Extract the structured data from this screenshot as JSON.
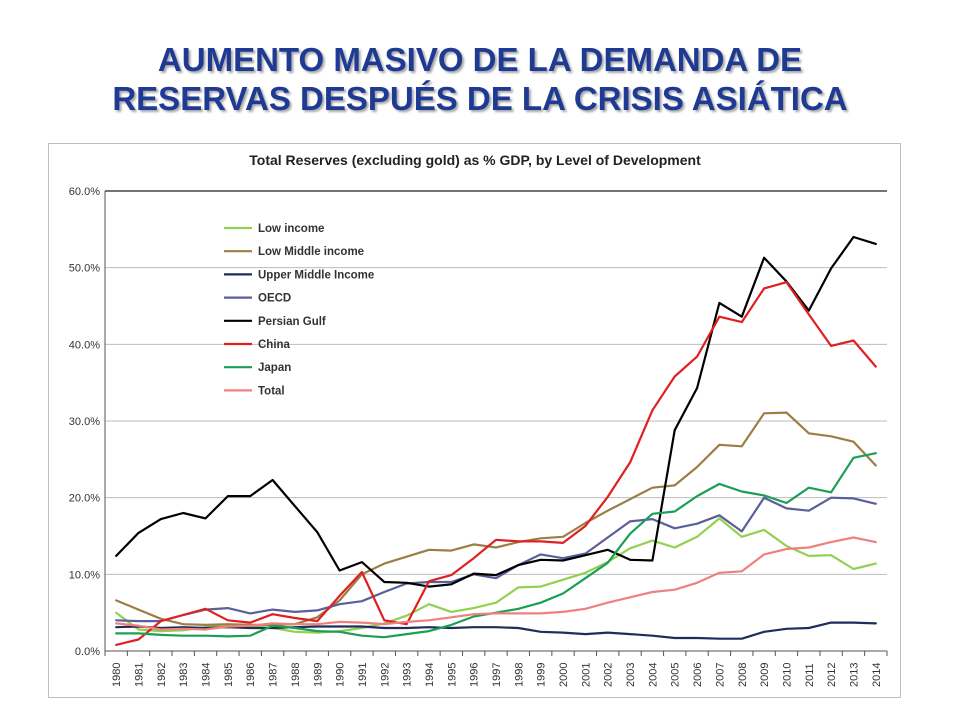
{
  "slide": {
    "title_line1": "AUMENTO MASIVO DE LA DEMANDA DE",
    "title_line2": "RESERVAS DESPUÉS DE LA CRISIS ASIÁTICA",
    "title_color": "#1f3a93"
  },
  "chart_data": {
    "type": "line",
    "title": "Total Reserves (excluding gold) as % GDP, by Level of Development",
    "xlabel": "",
    "ylabel": "",
    "ylim": [
      0,
      60
    ],
    "yticks": [
      "0.0%",
      "10.0%",
      "20.0%",
      "30.0%",
      "40.0%",
      "50.0%",
      "60.0%"
    ],
    "grid": true,
    "legend": "top-left",
    "categories": [
      "1980",
      "1981",
      "1982",
      "1983",
      "1984",
      "1985",
      "1986",
      "1987",
      "1988",
      "1989",
      "1990",
      "1991",
      "1992",
      "1993",
      "1994",
      "1995",
      "1996",
      "1997",
      "1998",
      "1999",
      "2000",
      "2001",
      "2002",
      "2003",
      "2004",
      "2005",
      "2006",
      "2007",
      "2008",
      "2009",
      "2010",
      "2011",
      "2012",
      "2013",
      "2014"
    ],
    "series": [
      {
        "name": "Low income",
        "color": "#92d050",
        "values": [
          5.0,
          2.8,
          2.6,
          2.7,
          3.1,
          3.4,
          3.2,
          3.0,
          2.5,
          2.4,
          2.6,
          3.0,
          3.6,
          4.6,
          6.1,
          5.1,
          5.6,
          6.3,
          8.3,
          8.4,
          9.3,
          10.2,
          11.6,
          13.4,
          14.4,
          13.5,
          14.9,
          17.3,
          14.9,
          15.8,
          13.7,
          12.4,
          12.5,
          10.7,
          11.4
        ]
      },
      {
        "name": "Low Middle income",
        "color": "#9c7e45",
        "values": [
          6.6,
          5.4,
          4.2,
          3.5,
          3.4,
          3.5,
          3.4,
          3.4,
          3.5,
          4.4,
          6.6,
          10.0,
          11.4,
          12.3,
          13.2,
          13.1,
          13.9,
          13.5,
          14.2,
          14.7,
          14.9,
          16.7,
          18.3,
          19.8,
          21.3,
          21.6,
          24.0,
          26.9,
          26.7,
          31.0,
          31.1,
          28.4,
          28.0,
          27.3,
          24.2
        ]
      },
      {
        "name": "Upper Middle Income",
        "color": "#1f2d5a",
        "values": [
          3.1,
          3.2,
          3.0,
          3.1,
          3.0,
          3.1,
          3.0,
          3.0,
          3.1,
          3.2,
          3.2,
          3.2,
          3.0,
          3.0,
          3.1,
          3.0,
          3.1,
          3.1,
          3.0,
          2.5,
          2.4,
          2.2,
          2.4,
          2.2,
          2.0,
          1.7,
          1.7,
          1.6,
          1.6,
          2.5,
          2.9,
          3.0,
          3.7,
          3.7,
          3.6
        ]
      },
      {
        "name": "OECD",
        "color": "#5a5f9a",
        "values": [
          4.0,
          3.9,
          3.9,
          4.7,
          5.4,
          5.6,
          4.9,
          5.4,
          5.1,
          5.3,
          6.1,
          6.5,
          7.7,
          8.8,
          9.0,
          9.0,
          10.0,
          9.5,
          11.2,
          12.6,
          12.1,
          12.7,
          14.8,
          16.9,
          17.2,
          16.0,
          16.6,
          17.7,
          15.6,
          20.0,
          18.6,
          18.3,
          20.0,
          19.9,
          19.2
        ]
      },
      {
        "name": "Persian Gulf",
        "color": "#000000",
        "values": [
          12.4,
          15.4,
          17.2,
          18.0,
          17.3,
          20.2,
          20.2,
          22.3,
          18.9,
          15.5,
          10.5,
          11.6,
          9.0,
          8.9,
          8.4,
          8.7,
          10.1,
          9.9,
          11.2,
          11.9,
          11.8,
          12.5,
          13.2,
          11.9,
          11.8,
          28.8,
          34.3,
          45.4,
          43.6,
          51.3,
          48.2,
          44.4,
          49.9,
          54.0,
          53.1
        ]
      },
      {
        "name": "China",
        "color": "#e02020",
        "values": [
          0.8,
          1.5,
          3.9,
          4.7,
          5.5,
          4.0,
          3.7,
          4.8,
          4.3,
          3.9,
          7.2,
          10.3,
          4.0,
          3.5,
          9.1,
          9.9,
          12.1,
          14.5,
          14.3,
          14.3,
          14.1,
          16.3,
          20.1,
          24.6,
          31.4,
          35.8,
          38.4,
          43.6,
          42.9,
          47.3,
          48.1,
          43.9,
          39.8,
          40.5,
          37.1
        ]
      },
      {
        "name": "Japan",
        "color": "#1a9f55",
        "values": [
          2.3,
          2.3,
          2.1,
          2.0,
          2.0,
          1.9,
          2.0,
          3.3,
          3.0,
          2.6,
          2.5,
          2.0,
          1.8,
          2.2,
          2.6,
          3.4,
          4.5,
          5.0,
          5.5,
          6.3,
          7.5,
          9.5,
          11.5,
          15.3,
          17.9,
          18.2,
          20.2,
          21.8,
          20.8,
          20.3,
          19.3,
          21.3,
          20.7,
          25.2,
          25.8
        ]
      },
      {
        "name": "Total",
        "color": "#f08080",
        "values": [
          3.6,
          3.3,
          2.8,
          2.9,
          2.8,
          3.2,
          3.3,
          3.6,
          3.5,
          3.5,
          3.8,
          3.7,
          3.5,
          3.8,
          4.0,
          4.4,
          4.8,
          4.9,
          4.9,
          4.9,
          5.1,
          5.5,
          6.3,
          7.0,
          7.7,
          8.0,
          8.9,
          10.2,
          10.4,
          12.6,
          13.3,
          13.5,
          14.2,
          14.8,
          14.2
        ]
      }
    ]
  }
}
